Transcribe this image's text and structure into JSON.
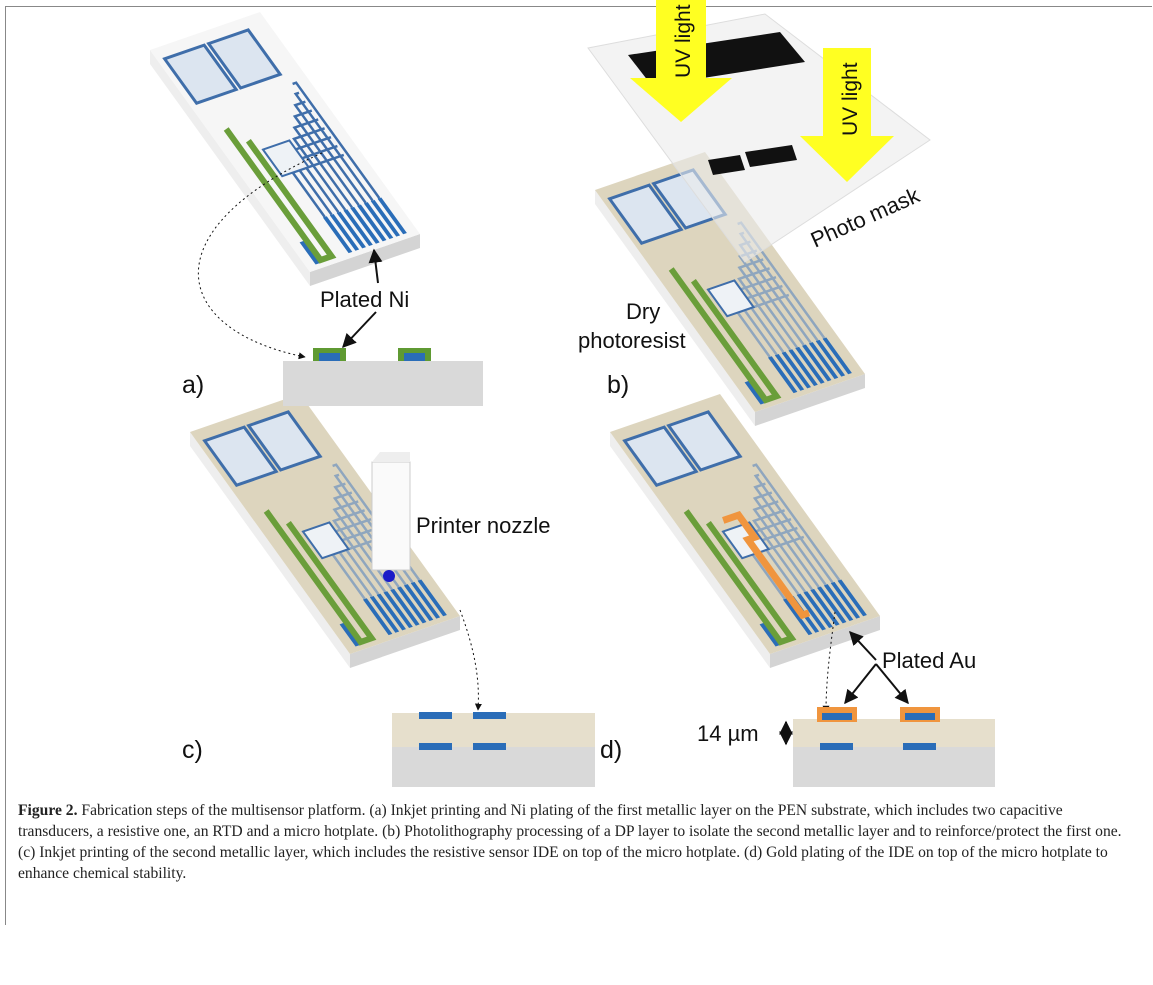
{
  "panels": [
    {
      "label": "a)",
      "annotations": [
        "Plated Ni"
      ]
    },
    {
      "label": "b)",
      "annotations": [
        "UV light",
        "UV light",
        "Photo mask",
        "Dry",
        "photoresist"
      ]
    },
    {
      "label": "c)",
      "annotations": [
        "Printer nozzle"
      ]
    },
    {
      "label": "d)",
      "annotations": [
        "Plated Au",
        "14 µm"
      ]
    }
  ],
  "caption": {
    "title": "Figure 2.",
    "text": "Fabrication steps of the multisensor platform. (a) Inkjet printing and Ni plating of the first metallic layer on the PEN substrate, which includes two capacitive transducers, a resistive one, an RTD and a micro hotplate. (b) Photolithography processing of a DP layer to isolate the second metallic layer and to reinforce/protect the first one. (c) Inkjet printing of the second metallic layer, which includes the resistive sensor IDE on top of the micro hotplate. (d) Gold plating of the IDE on top of the micro hotplate to enhance chemical stability."
  }
}
